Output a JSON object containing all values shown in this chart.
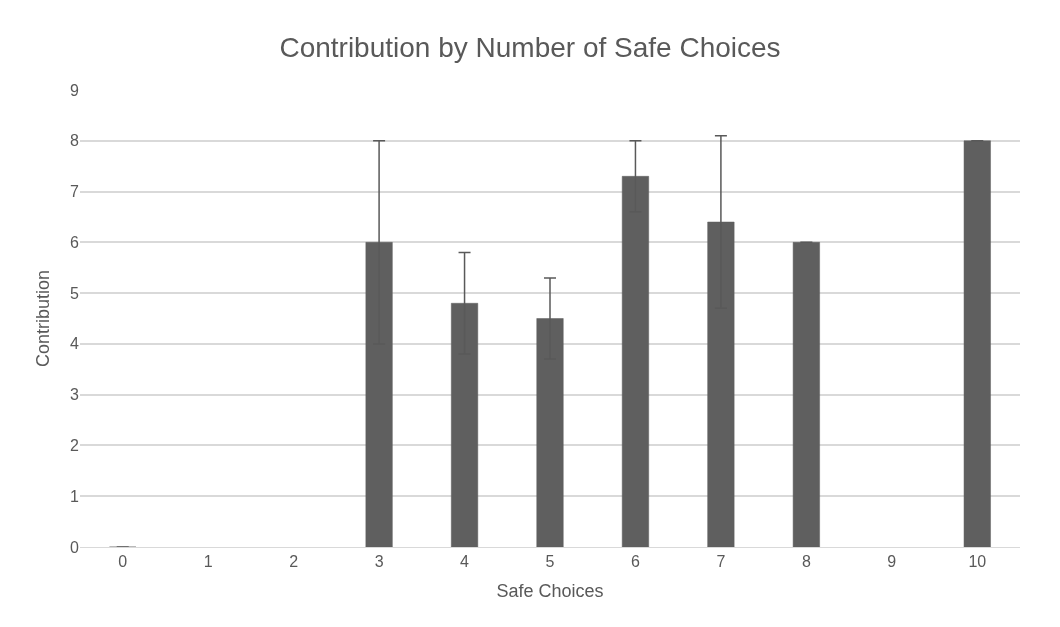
{
  "chart_data": {
    "type": "bar",
    "title": "Contribution by Number of Safe Choices",
    "xlabel": "Safe Choices",
    "ylabel": "Contribution",
    "categories": [
      "0",
      "1",
      "2",
      "3",
      "4",
      "5",
      "6",
      "7",
      "8",
      "9",
      "10"
    ],
    "values": [
      0,
      null,
      null,
      6,
      4.8,
      4.5,
      7.3,
      6.4,
      6,
      null,
      8
    ],
    "errors": [
      0,
      null,
      null,
      2,
      1.0,
      0.8,
      0.7,
      1.7,
      0,
      null,
      0
    ],
    "color": "#5f5f5f",
    "ylim": [
      0,
      9
    ],
    "yticks": [
      0,
      1,
      2,
      3,
      4,
      5,
      6,
      7,
      8,
      9
    ],
    "grid": "y",
    "legend": false
  }
}
